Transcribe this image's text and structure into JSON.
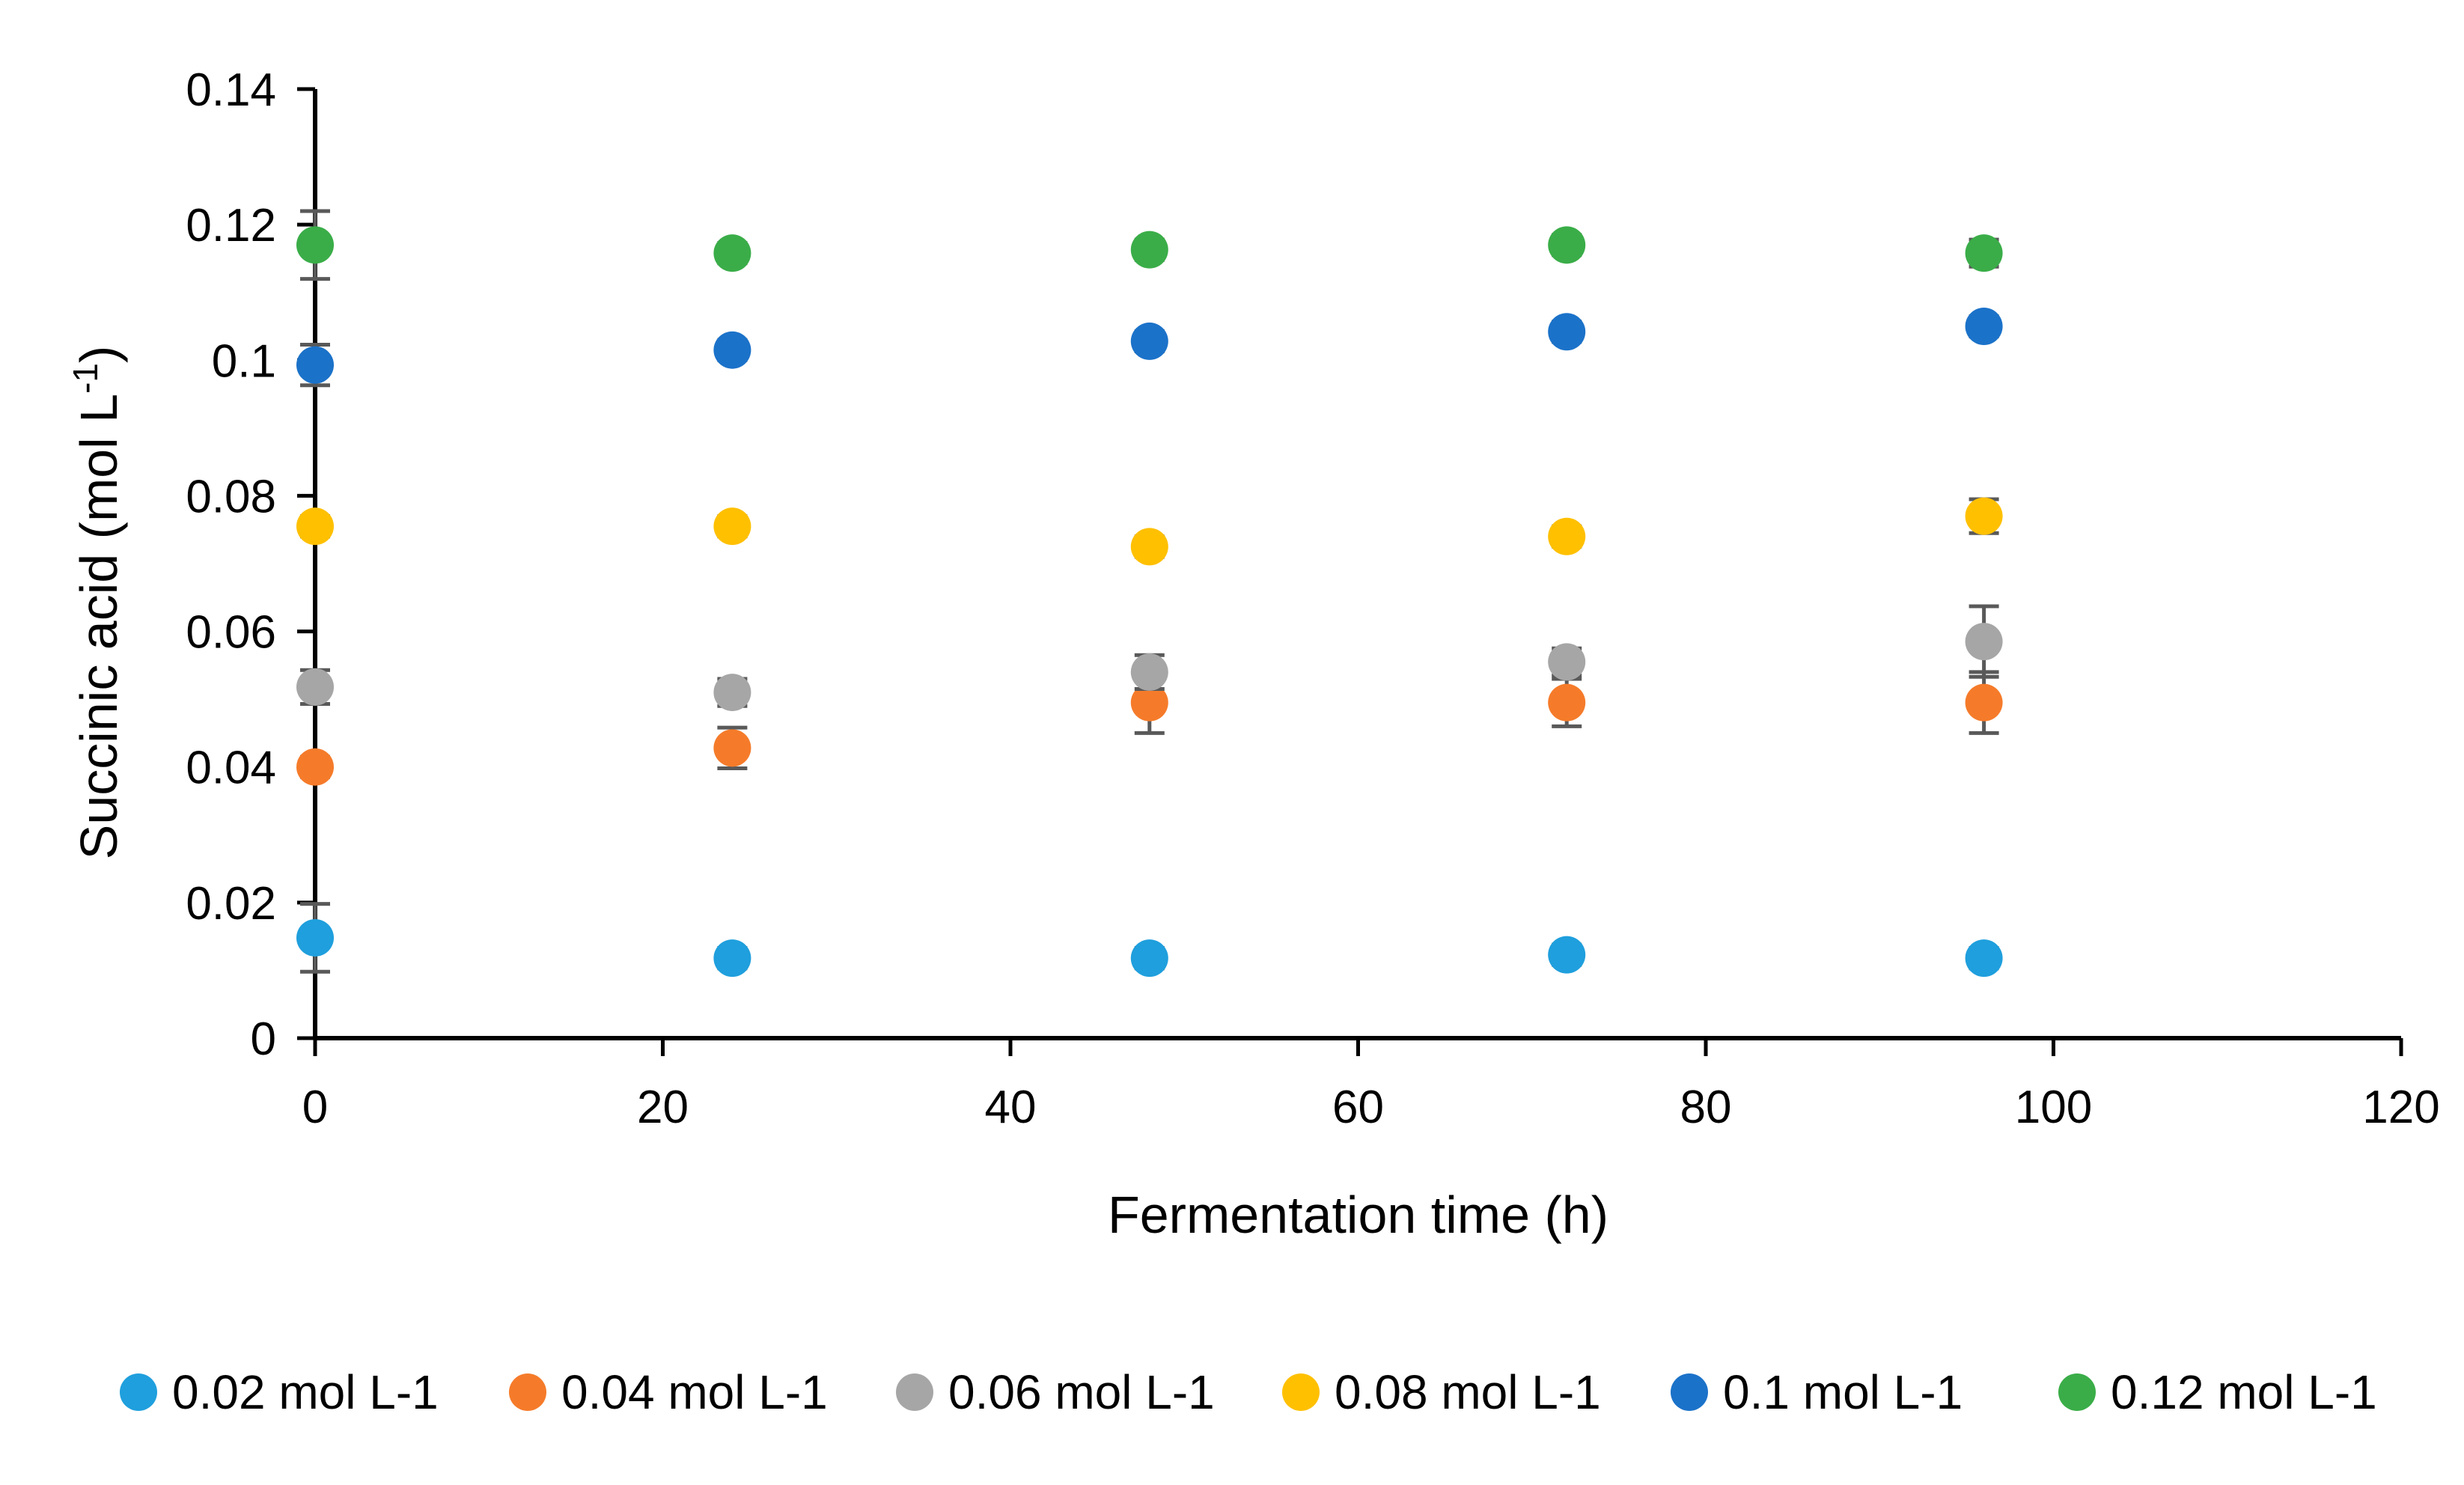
{
  "chart_data": {
    "type": "scatter",
    "title": "",
    "xlabel": "Fermentation time (h)",
    "ylabel": "Succinic acid (mol L",
    "ylabel_superscript": "-1",
    "ylabel_close": ")",
    "xlim": [
      0,
      120
    ],
    "ylim": [
      0,
      0.14
    ],
    "x_ticks": [
      "0",
      "20",
      "40",
      "60",
      "80",
      "100",
      "120"
    ],
    "y_ticks": [
      "0",
      "0.02",
      "0.04",
      "0.06",
      "0.08",
      "0.1",
      "0.12",
      "0.14"
    ],
    "grid": false,
    "legend_position": "bottom",
    "x": [
      0,
      24,
      48,
      72,
      96
    ],
    "series": [
      {
        "name": "0.02 mol L-1",
        "color": "#1f9fdd",
        "values": [
          0.0148,
          0.0118,
          0.0118,
          0.0123,
          0.0118
        ],
        "errors": [
          0.005,
          0.0015,
          0.0015,
          0.0015,
          0.0015
        ]
      },
      {
        "name": "0.04 mol L-1",
        "color": "#f57b2a",
        "values": [
          0.04,
          0.0428,
          0.0495,
          0.0495,
          0.0495
        ],
        "errors": [
          0.0015,
          0.003,
          0.0045,
          0.0035,
          0.0045
        ]
      },
      {
        "name": "0.06 mol L-1",
        "color": "#a6a6a6",
        "values": [
          0.0518,
          0.051,
          0.054,
          0.0555,
          0.0585
        ],
        "errors": [
          0.0025,
          0.002,
          0.0025,
          0.002,
          0.0052
        ]
      },
      {
        "name": "0.08 mol L-1",
        "color": "#ffc000",
        "values": [
          0.0755,
          0.0755,
          0.0725,
          0.074,
          0.077
        ],
        "errors": [
          0.0015,
          0.0015,
          0.0015,
          0.0015,
          0.0025
        ]
      },
      {
        "name": "0.1 mol L-1",
        "color": "#1b72c9",
        "values": [
          0.0993,
          0.1015,
          0.1028,
          0.1042,
          0.105
        ],
        "errors": [
          0.003,
          0.0015,
          0.0015,
          0.0015,
          0.0015
        ]
      },
      {
        "name": "0.12 mol L-1",
        "color": "#3aad48",
        "values": [
          0.117,
          0.1158,
          0.1163,
          0.117,
          0.1158
        ],
        "errors": [
          0.005,
          0.0015,
          0.0015,
          0.0015,
          0.002
        ]
      }
    ]
  }
}
